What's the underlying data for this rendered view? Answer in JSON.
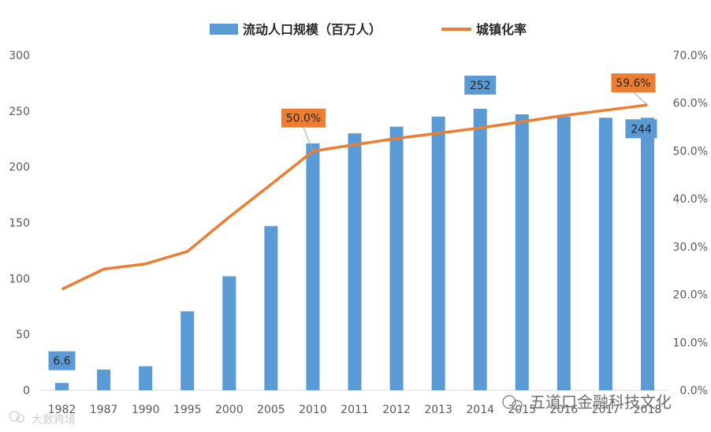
{
  "chart_data": {
    "type": "bar+line",
    "categories": [
      "1982",
      "1987",
      "1990",
      "1995",
      "2000",
      "2005",
      "2010",
      "2011",
      "2012",
      "2013",
      "2014",
      "2015",
      "2016",
      "2017",
      "2018"
    ],
    "series": [
      {
        "name": "流动人口规模（百万人）",
        "type": "bar",
        "axis": "left",
        "values": [
          6.6,
          18.5,
          21.5,
          70.7,
          102,
          147,
          221,
          230,
          236,
          245,
          252,
          247,
          245,
          244,
          244
        ],
        "color": "#5b9bd5"
      },
      {
        "name": "城镇化率",
        "type": "line",
        "axis": "right",
        "values": [
          21.1,
          25.3,
          26.4,
          29.0,
          36.2,
          43.0,
          49.95,
          51.3,
          52.6,
          53.7,
          54.8,
          56.1,
          57.4,
          58.5,
          59.6
        ],
        "color": "#ed7d31"
      }
    ],
    "y_left": {
      "min": 0,
      "max": 300,
      "ticks": [
        "0",
        "50",
        "100",
        "150",
        "200",
        "250",
        "300"
      ]
    },
    "y_right": {
      "min": 0,
      "max": 70,
      "ticks": [
        "0.0%",
        "10.0%",
        "20.0%",
        "30.0%",
        "40.0%",
        "50.0%",
        "60.0%",
        "70.0%"
      ]
    },
    "annotations": [
      {
        "series": 0,
        "index": 0,
        "text": "6.6",
        "color": "#5b9bd5"
      },
      {
        "series": 0,
        "index": 10,
        "text": "252",
        "color": "#5b9bd5"
      },
      {
        "series": 0,
        "index": 14,
        "text": "244",
        "color": "#5b9bd5"
      },
      {
        "series": 1,
        "index": 6,
        "text": "50.0%",
        "color": "#ed7d31"
      },
      {
        "series": 1,
        "index": 14,
        "text": "59.6%",
        "color": "#ed7d31"
      }
    ],
    "legend": "top",
    "grid": false
  },
  "watermark": {
    "left": "大数跨境",
    "right": "五道口金融科技文化",
    "left_icon": "wechat-icon",
    "right_icon": "wechat-icon"
  }
}
